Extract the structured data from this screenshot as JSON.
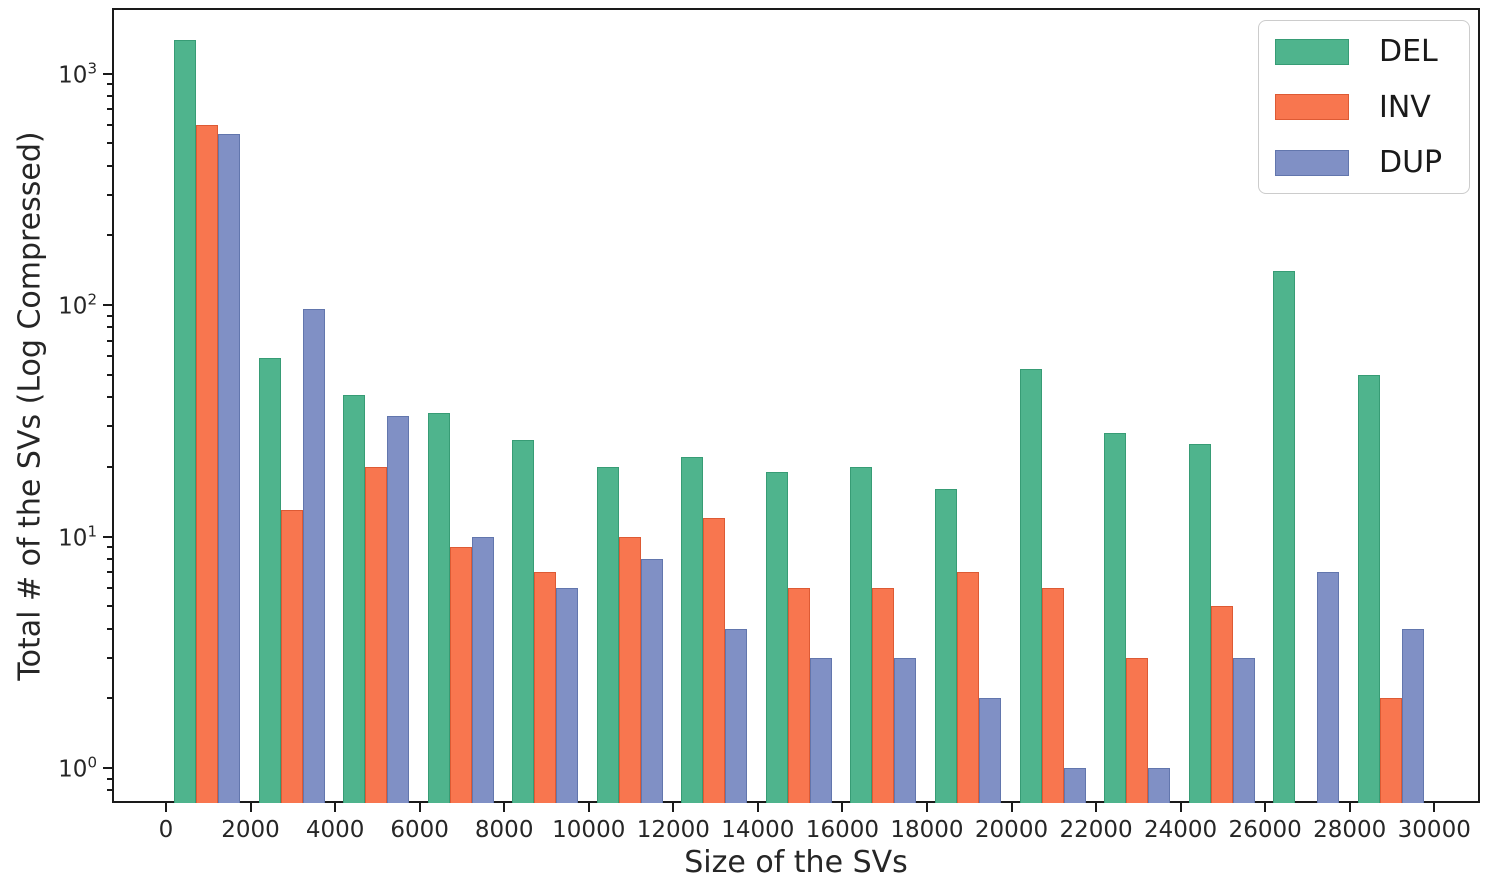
{
  "figure": {
    "background_color": "#ffffff",
    "spine_color": "#1a1a1a"
  },
  "chart_data": {
    "type": "bar",
    "subtype": "grouped-histogram",
    "title": "",
    "xlabel": "Size of the SVs",
    "ylabel": "Total # of the SVs (Log Compressed)",
    "y_scale": "log",
    "grid": false,
    "legend_position": "upper right",
    "bin_width": 2000,
    "bin_starts": [
      0,
      2000,
      4000,
      6000,
      8000,
      10000,
      12000,
      14000,
      16000,
      18000,
      20000,
      22000,
      24000,
      26000,
      28000
    ],
    "series": [
      {
        "name": "DEL",
        "color": "#4fb48d",
        "edge_color": "#379c75",
        "values": [
          1400,
          59,
          41,
          34,
          26,
          20,
          22,
          19,
          20,
          16,
          53,
          28,
          25,
          140,
          50
        ]
      },
      {
        "name": "INV",
        "color": "#f8764f",
        "edge_color": "#dd5a34",
        "values": [
          600,
          13,
          20,
          9,
          7,
          10,
          12,
          6,
          6,
          7,
          6,
          3,
          5,
          0,
          2
        ]
      },
      {
        "name": "DUP",
        "color": "#8090c5",
        "edge_color": "#6276ad",
        "values": [
          550,
          96,
          33,
          10,
          6,
          8,
          4,
          3,
          3,
          2,
          1,
          1,
          3,
          7,
          4
        ]
      }
    ],
    "x_tick_values": [
      0,
      2000,
      4000,
      6000,
      8000,
      10000,
      12000,
      14000,
      16000,
      18000,
      20000,
      22000,
      24000,
      26000,
      28000,
      30000
    ],
    "y_tick_exponents": [
      0,
      1,
      2,
      3
    ],
    "ylim": [
      0.7,
      1900
    ],
    "xlim": [
      -1280,
      31050
    ]
  }
}
